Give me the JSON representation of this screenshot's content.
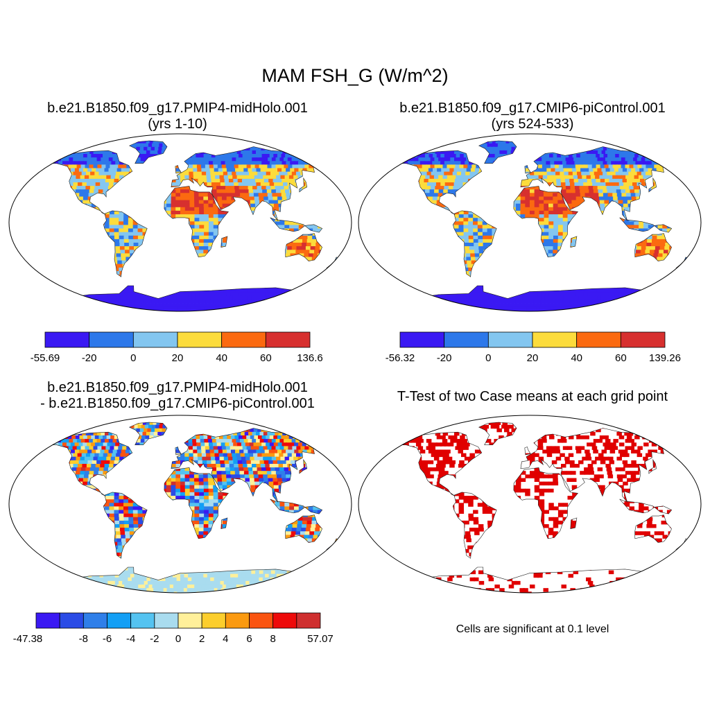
{
  "title": "MAM FSH_G (W/m^2)",
  "panels": [
    {
      "id": "case1",
      "title_line1": "b.e21.B1850.f09_g17.PMIP4-midHolo.001",
      "title_line2": "(yrs 1-10)",
      "colorbar": {
        "labels": [
          "-55.69",
          "-20",
          "0",
          "20",
          "40",
          "60",
          "136.6"
        ],
        "colors": [
          "#3a19f3",
          "#2d78ea",
          "#83c6f0",
          "#fcdc3c",
          "#fb6a10",
          "#d7302f"
        ]
      }
    },
    {
      "id": "case2",
      "title_line1": "b.e21.B1850.f09_g17.CMIP6-piControl.001",
      "title_line2": "(yrs 524-533)",
      "colorbar": {
        "labels": [
          "-56.32",
          "-20",
          "0",
          "20",
          "40",
          "60",
          "139.26"
        ],
        "colors": [
          "#3a19f3",
          "#2d78ea",
          "#83c6f0",
          "#fcdc3c",
          "#fb6a10",
          "#d7302f"
        ]
      }
    },
    {
      "id": "difference",
      "title_line1": "b.e21.B1850.f09_g17.PMIP4-midHolo.001",
      "title_line2": "- b.e21.B1850.f09_g17.CMIP6-piControl.001",
      "colorbar": {
        "labels": [
          "-47.38",
          "-8",
          "-6",
          "-4",
          "-2",
          "0",
          "2",
          "4",
          "6",
          "8",
          "57.07"
        ],
        "colors": [
          "#3a19f3",
          "#2a4be6",
          "#2f7fe9",
          "#139ff5",
          "#54c3f1",
          "#a9dcef",
          "#fff09a",
          "#fcce2c",
          "#fb9a10",
          "#fa5410",
          "#ee0a0a",
          "#cf2f2f"
        ]
      }
    },
    {
      "id": "ttest",
      "title_line1": "T-Test of two Case means at each grid point",
      "note": "Cells are significant at 0.1 level",
      "significance_color": "#e00000"
    }
  ]
}
